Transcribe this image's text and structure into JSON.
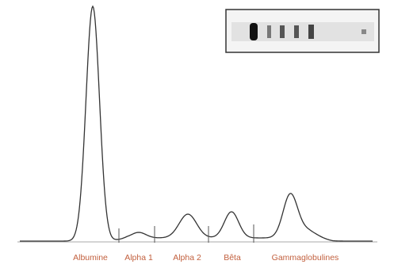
{
  "fractions": [
    "Albumine",
    "Alpha 1",
    "Alpha 2",
    "Bêta",
    "Gammaglobulines"
  ]
}
